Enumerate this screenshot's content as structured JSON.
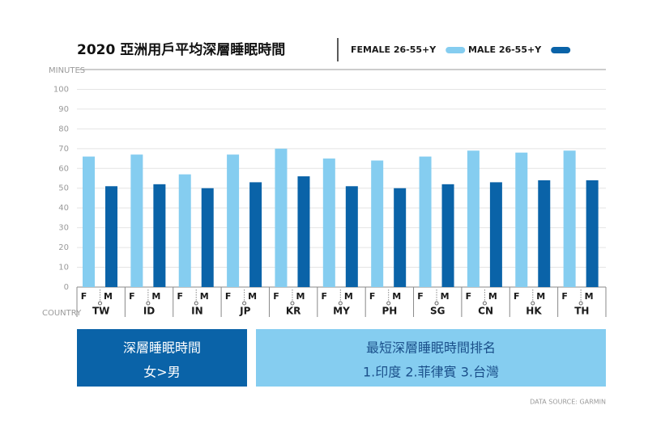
{
  "chart_data": {
    "type": "bar",
    "title": "2020 亞洲用戶平均深層睡眠時間",
    "y_label": "MINUTES",
    "x_label": "COUNTRY",
    "categories": [
      "TW",
      "ID",
      "IN",
      "JP",
      "KR",
      "MY",
      "PH",
      "SG",
      "CN",
      "HK",
      "TH"
    ],
    "group_labels": [
      "F",
      "M"
    ],
    "series": [
      {
        "name": "FEMALE 26-55+Y",
        "color": "#85cdf0",
        "values": [
          66,
          67,
          57,
          67,
          70,
          65,
          64,
          66,
          69,
          68,
          69
        ]
      },
      {
        "name": "MALE 26-55+Y",
        "color": "#0a63a8",
        "values": [
          51,
          52,
          50,
          53,
          56,
          51,
          50,
          52,
          53,
          54,
          54
        ]
      }
    ],
    "ylim": [
      0,
      110
    ],
    "yticks": [
      0,
      10,
      20,
      30,
      40,
      50,
      60,
      70,
      80,
      90,
      100
    ],
    "grid": true,
    "annotations": [
      {
        "lines": [
          "深層睡眠時間",
          "女>男"
        ]
      },
      {
        "lines": [
          "最短深層睡眠時間排名",
          "1.印度 2.菲律賓 3.台灣"
        ]
      }
    ],
    "source": "DATA SOURCE: GARMIN"
  }
}
